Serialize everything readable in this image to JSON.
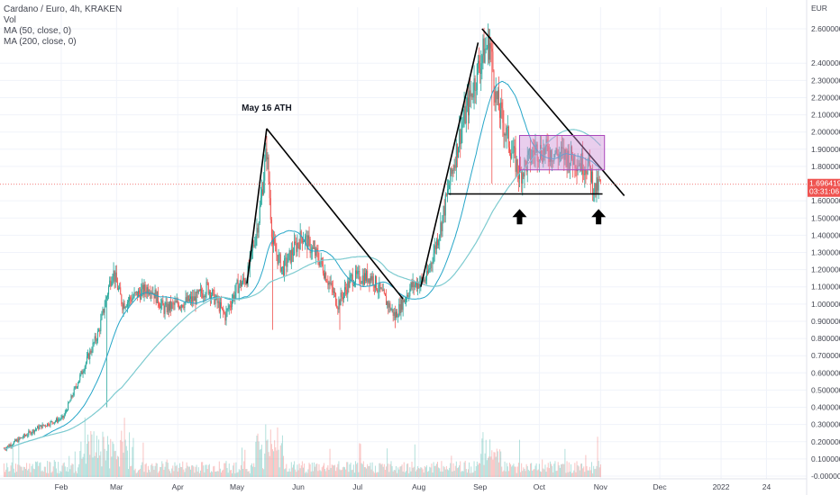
{
  "legend": {
    "symbol": "Cardano / Euro, 4h, KRAKEN",
    "volume": "Vol",
    "ma50": "MA (50, close, 0)",
    "ma200": "MA (200, close, 0)"
  },
  "colors": {
    "up": "#26a69a",
    "down": "#ef5350",
    "ma50": "#26a6c8",
    "ma200": "#7ecbd0",
    "price_line": "#ef5350",
    "box_fill": "#ce93d8",
    "box_stroke": "#ab47bc",
    "trendline": "#000000"
  },
  "chart_data": {
    "type": "candlestick",
    "symbol": "Cardano / Euro, 4h, KRAKEN",
    "currency": "EUR",
    "y_axis": {
      "range": [
        -0.02,
        2.7
      ],
      "ticks": [
        "2.600000",
        "2.400000",
        "2.300000",
        "2.200000",
        "2.100000",
        "2.000000",
        "1.900000",
        "1.800000",
        "1.600000",
        "1.500000",
        "1.400000",
        "1.300000",
        "1.200000",
        "1.100000",
        "1.000000",
        "0.900000",
        "0.800000",
        "0.700000",
        "0.600000",
        "0.500000",
        "0.400000",
        "0.300000",
        "0.200000",
        "0.100000",
        "-0.000000"
      ],
      "currency_label": "EUR"
    },
    "x_axis": {
      "ticks": [
        "Feb",
        "Mar",
        "Apr",
        "May",
        "Jun",
        "Jul",
        "Aug",
        "Sep",
        "Oct",
        "Nov",
        "Dec",
        "2022",
        "24"
      ]
    },
    "last_price": {
      "value": 1.696419,
      "label": "1.696419",
      "countdown": "03:31:06"
    },
    "path_anchors": [
      {
        "date": "2021-01-03",
        "price": 0.16
      },
      {
        "date": "2021-01-20",
        "price": 0.28
      },
      {
        "date": "2021-02-02",
        "price": 0.34
      },
      {
        "date": "2021-02-12",
        "price": 0.62
      },
      {
        "date": "2021-02-20",
        "price": 0.84
      },
      {
        "date": "2021-02-27",
        "price": 1.2
      },
      {
        "date": "2021-03-04",
        "price": 1.0
      },
      {
        "date": "2021-03-12",
        "price": 1.06
      },
      {
        "date": "2021-03-18",
        "price": 1.1
      },
      {
        "date": "2021-03-25",
        "price": 0.97
      },
      {
        "date": "2021-04-01",
        "price": 1.0
      },
      {
        "date": "2021-04-10",
        "price": 1.03
      },
      {
        "date": "2021-04-16",
        "price": 1.1
      },
      {
        "date": "2021-04-25",
        "price": 0.93
      },
      {
        "date": "2021-05-01",
        "price": 1.1
      },
      {
        "date": "2021-05-06",
        "price": 1.15
      },
      {
        "date": "2021-05-12",
        "price": 1.5
      },
      {
        "date": "2021-05-16",
        "price": 1.9
      },
      {
        "date": "2021-05-19",
        "price": 1.35
      },
      {
        "date": "2021-05-24",
        "price": 1.2
      },
      {
        "date": "2021-06-03",
        "price": 1.4
      },
      {
        "date": "2021-06-12",
        "price": 1.25
      },
      {
        "date": "2021-06-21",
        "price": 1.0
      },
      {
        "date": "2021-06-28",
        "price": 1.15
      },
      {
        "date": "2021-07-08",
        "price": 1.16
      },
      {
        "date": "2021-07-20",
        "price": 0.93
      },
      {
        "date": "2021-07-28",
        "price": 1.1
      },
      {
        "date": "2021-08-05",
        "price": 1.15
      },
      {
        "date": "2021-08-12",
        "price": 1.45
      },
      {
        "date": "2021-08-22",
        "price": 2.0
      },
      {
        "date": "2021-08-27",
        "price": 2.2
      },
      {
        "date": "2021-09-02",
        "price": 2.45
      },
      {
        "date": "2021-09-06",
        "price": 2.52
      },
      {
        "date": "2021-09-09",
        "price": 2.2
      },
      {
        "date": "2021-09-14",
        "price": 2.0
      },
      {
        "date": "2021-09-21",
        "price": 1.75
      },
      {
        "date": "2021-09-29",
        "price": 1.9
      },
      {
        "date": "2021-10-08",
        "price": 1.88
      },
      {
        "date": "2021-10-18",
        "price": 1.85
      },
      {
        "date": "2021-10-26",
        "price": 1.8
      },
      {
        "date": "2021-10-29",
        "price": 1.66
      },
      {
        "date": "2021-11-01",
        "price": 1.7
      }
    ],
    "annotations": [
      {
        "type": "text",
        "text": "May 16 ATH",
        "date": "2021-05-16",
        "price": 2.05
      },
      {
        "type": "trendline",
        "from": {
          "date": "2021-05-06",
          "price": 1.12
        },
        "to": {
          "date": "2021-05-16",
          "price": 2.02
        }
      },
      {
        "type": "trendline",
        "from": {
          "date": "2021-05-16",
          "price": 2.02
        },
        "to": {
          "date": "2021-07-24",
          "price": 1.03
        }
      },
      {
        "type": "trendline",
        "from": {
          "date": "2021-08-02",
          "price": 1.1
        },
        "to": {
          "date": "2021-08-31",
          "price": 2.52
        }
      },
      {
        "type": "trendline",
        "from": {
          "date": "2021-09-02",
          "price": 2.6
        },
        "to": {
          "date": "2021-11-13",
          "price": 1.63
        }
      },
      {
        "type": "trendline",
        "from": {
          "date": "2021-08-16",
          "price": 1.64
        },
        "to": {
          "date": "2021-11-02",
          "price": 1.64
        }
      },
      {
        "type": "box",
        "from": {
          "date": "2021-09-21",
          "price": 1.98
        },
        "to": {
          "date": "2021-11-03",
          "price": 1.78
        }
      },
      {
        "type": "arrow",
        "direction": "up",
        "date": "2021-09-21",
        "price": 1.5
      },
      {
        "type": "arrow",
        "direction": "up",
        "date": "2021-10-31",
        "price": 1.5
      }
    ]
  }
}
